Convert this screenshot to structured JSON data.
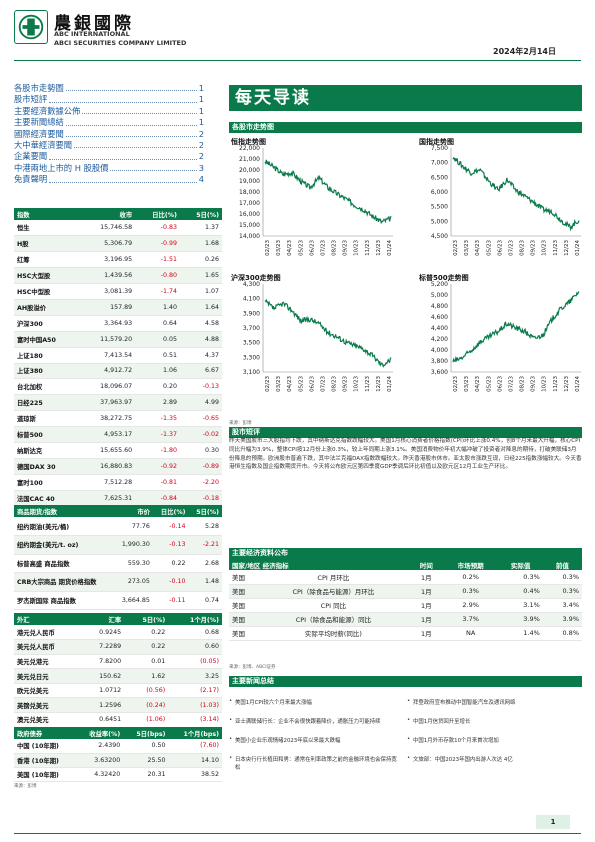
{
  "header": {
    "brand_cn": "農銀國際",
    "brand_en1": "ABC INTERNATIONAL",
    "brand_en2": "ABCI SECURITIES COMPANY LIMITED",
    "date": "2024年2月14日",
    "brand_color": "#0a7a4a"
  },
  "toc": [
    {
      "title": "各股市走勢圖",
      "page": "1"
    },
    {
      "title": "股市短評",
      "page": "1"
    },
    {
      "title": "主要經濟數據公佈",
      "page": "1"
    },
    {
      "title": "主要新聞總結",
      "page": "1"
    },
    {
      "title": "國際經濟要聞",
      "page": "2"
    },
    {
      "title": "大中華經濟要聞",
      "page": "2"
    },
    {
      "title": "企業要聞",
      "page": "2"
    },
    {
      "title": "中港兩地上市的 H 股股價",
      "page": "3"
    },
    {
      "title": "免責聲明",
      "page": "4"
    }
  ],
  "banner": "每天导读",
  "indices": {
    "headers": [
      "指数",
      "收市",
      "日比(%)",
      "5日(%)"
    ],
    "rows": [
      [
        "恒生",
        "15,746.58",
        "-0.83",
        "1.37"
      ],
      [
        "H股",
        "5,306.79",
        "-0.99",
        "1.68"
      ],
      [
        "红筹",
        "3,196.95",
        "-1.51",
        "0.26"
      ],
      [
        "HSC大型股",
        "1,439.56",
        "-0.80",
        "1.65"
      ],
      [
        "HSC中型股",
        "3,081.39",
        "-1.74",
        "1.07"
      ],
      [
        "AH股溢价",
        "157.89",
        "1.40",
        "1.64"
      ],
      [
        "沪深300",
        "3,364.93",
        "0.64",
        "4.58"
      ],
      [
        "富时中国A50",
        "11,579.20",
        "0.05",
        "4.88"
      ],
      [
        "上证180",
        "7,413.54",
        "0.51",
        "4.37"
      ],
      [
        "上证380",
        "4,912.72",
        "1.06",
        "6.67"
      ],
      [
        "台北加权",
        "18,096.07",
        "0.20",
        "-0.13"
      ],
      [
        "日经225",
        "37,963.97",
        "2.89",
        "4.99"
      ],
      [
        "道琼斯",
        "38,272.75",
        "-1.35",
        "-0.65"
      ],
      [
        "标普500",
        "4,953.17",
        "-1.37",
        "-0.02"
      ],
      [
        "纳斯达克",
        "15,655.60",
        "-1.80",
        "0.30"
      ],
      [
        "德国DAX 30",
        "16,880.83",
        "-0.92",
        "-0.89"
      ],
      [
        "富时100",
        "7,512.28",
        "-0.81",
        "-2.20"
      ],
      [
        "法国CAC 40",
        "7,625.31",
        "-0.84",
        "-0.18"
      ]
    ]
  },
  "commodities": {
    "headers": [
      "商品期货/指数",
      "市价",
      "日比(%)",
      "5日(%)"
    ],
    "rows": [
      [
        "纽约期油(美元/桶)",
        "77.76",
        "-0.14",
        "5.28"
      ],
      [
        "纽约期金(美元/t. oz)",
        "1,990.30",
        "-0.13",
        "-2.21"
      ],
      [
        "标普高盛 商品指数",
        "559.30",
        "0.22",
        "2.68"
      ],
      [
        "CRB大宗商品 期货价格指数",
        "273.05",
        "-0.10",
        "1.48"
      ],
      [
        "罗杰斯国际 商品指数",
        "3,664.85",
        "-0.11",
        "0.74"
      ]
    ]
  },
  "fx": {
    "headers": [
      "外汇",
      "汇率",
      "5日(%)",
      "1个月(%)"
    ],
    "rows": [
      [
        "港元兑人民币",
        "0.9245",
        "0.22",
        "0.68"
      ],
      [
        "美元兑人民币",
        "7.2289",
        "0.22",
        "0.60"
      ],
      [
        "美元兑港元",
        "7.8200",
        "0.01",
        "(0.05)"
      ],
      [
        "美元兑日元",
        "150.62",
        "1.62",
        "3.25"
      ],
      [
        "欧元兑美元",
        "1.0712",
        "(0.56)",
        "(2.17)"
      ],
      [
        "英镑兑美元",
        "1.2596",
        "(0.24)",
        "(1.03)"
      ],
      [
        "澳元兑美元",
        "0.6451",
        "(1.06)",
        "(3.14)"
      ]
    ]
  },
  "bonds": {
    "headers": [
      "政府债券",
      "收益率(%)",
      "5日(bps)",
      "1个月(bps)"
    ],
    "rows": [
      [
        "中国 (10年期)",
        "2.4390",
        "0.50",
        "(7.60)"
      ],
      [
        "香港 (10年期)",
        "3.63200",
        "25.50",
        "14.10"
      ],
      [
        "美国 (10年期)",
        "4.32420",
        "20.31",
        "38.52"
      ]
    ],
    "source": "来源：彭博"
  },
  "charts_section": "各股市走势图",
  "charts": [
    {
      "title": "恒指走势图",
      "yticks": [
        "22,000",
        "21,000",
        "20,000",
        "19,000",
        "18,000",
        "17,000",
        "16,000",
        "15,000",
        "14,000"
      ],
      "ylim": [
        14000,
        22000
      ]
    },
    {
      "title": "国指走势图",
      "yticks": [
        "7,500",
        "7,000",
        "6,500",
        "6,000",
        "5,500",
        "5,000",
        "4,500"
      ],
      "ylim": [
        4500,
        7500
      ]
    },
    {
      "title": "沪深300走势图",
      "yticks": [
        "4,300",
        "4,100",
        "3,900",
        "3,700",
        "3,500",
        "3,300",
        "3,100"
      ],
      "ylim": [
        3100,
        4300
      ]
    },
    {
      "title": "标普500走势图",
      "yticks": [
        "5,200",
        "5,000",
        "4,800",
        "4,600",
        "4,400",
        "4,200",
        "4,000",
        "3,800",
        "3,600"
      ],
      "ylim": [
        3600,
        5200
      ]
    }
  ],
  "chart_xticks": [
    "02/23",
    "03/23",
    "04/23",
    "05/23",
    "06/23",
    "07/23",
    "08/23",
    "09/23",
    "10/23",
    "11/23",
    "12/23",
    "01/24"
  ],
  "chart_source": "来源：彭博",
  "commentary": {
    "title": "股市短评",
    "text": "昨天美国股市三大股指均下跌，其中纳斯达克指数跌幅较大。美国1月核心消费者价格指数(CPI)环比上涨0.4%，创8个月来最大升幅，核心CPI同比升幅为3.9%，整体CPI按12月份上涨0.3%，较上年同期上涨3.1%。美国消费物价年初大幅冲破了投资者对降息的期待，打破美联储3月份降息的预期。欧洲股市普遍下跌，其中法兰克福DAX指数跌幅较大。昨天香港股市休市。亚太股市涨跌互现，日经225指数涨幅较大。今天香港恒生指数及国企指数期货开市。今天将公布欧元区第四季度GDP季调后环比初值以及欧元区12月工业生产环比。"
  },
  "eco": {
    "title": "主要经济资料公布",
    "headers": [
      "国家/地区 经济指标",
      "时间",
      "市场预期",
      "实际值",
      "前值"
    ],
    "rows": [
      [
        "美国",
        "CPI 月环比",
        "1月",
        "0.2%",
        "0.3%",
        "0.3%"
      ],
      [
        "美国",
        "CPI（除食品与能源）月环比",
        "1月",
        "0.3%",
        "0.4%",
        "0.3%"
      ],
      [
        "美国",
        "CPI 同比",
        "1月",
        "2.9%",
        "3.1%",
        "3.4%"
      ],
      [
        "美国",
        "CPI（除食品和能源）同比",
        "1月",
        "3.7%",
        "3.9%",
        "3.9%"
      ],
      [
        "美国",
        "实际平均时薪(同比)",
        "1月",
        "NA",
        "1.4%",
        "0.8%"
      ]
    ],
    "source": "来源：彭博、ABCI证券"
  },
  "news": {
    "title": "主要新闻总结",
    "left": [
      "美国1月CPI较六个月来最大涨幅",
      "亚士满联储行长：企业不会很快跟着降价，通胀压力可能持续",
      "美国小企业乐观情绪2023年底以来最大跌幅",
      "日本央行行长植田和男：通常在利率政策之前的金融环境也会保持宽松"
    ],
    "right": [
      "拜登政府宣布推动中国智能汽车及通讯网络",
      "中国1月信贷回升至增长",
      "中国1月外币存款10个月来首次增加",
      "文旅部：中国2023年国内出游人次达 4亿"
    ]
  },
  "page_number": "1"
}
